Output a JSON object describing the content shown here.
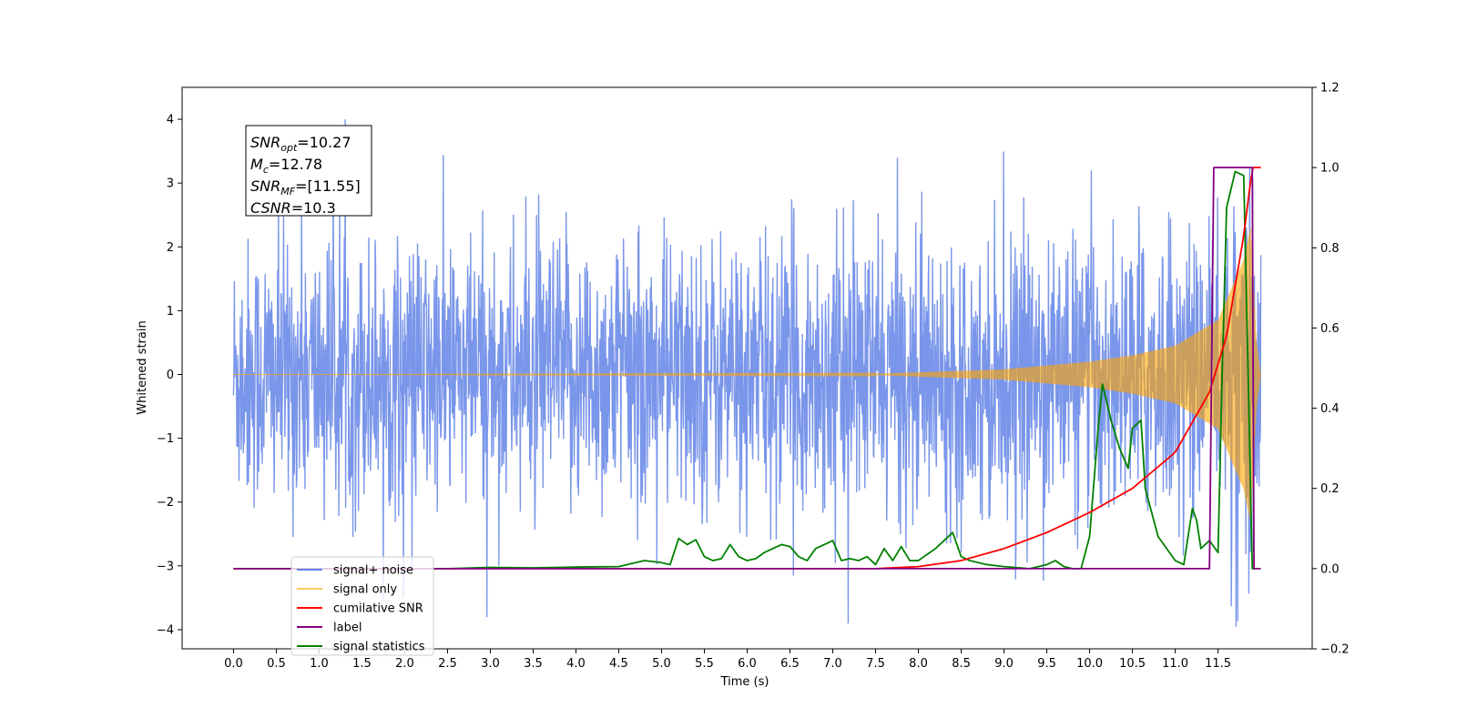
{
  "chart_data": {
    "type": "line",
    "xlabel": "Time (s)",
    "ylabel": "Whitened strain",
    "xlim": [
      -0.6,
      12.6
    ],
    "ylim_left": [
      -4.3,
      4.5
    ],
    "ylim_right": [
      -0.2,
      1.2
    ],
    "x_ticks": [
      "0.0",
      "0.5",
      "1.0",
      "1.5",
      "2.0",
      "2.5",
      "3.0",
      "3.5",
      "4.0",
      "4.5",
      "5.0",
      "5.5",
      "6.0",
      "6.5",
      "7.0",
      "7.5",
      "8.0",
      "8.5",
      "9.0",
      "9.5",
      "10.0",
      "10.5",
      "11.0",
      "11.5"
    ],
    "y_left_ticks": [
      "−4",
      "−3",
      "−2",
      "−1",
      "0",
      "1",
      "2",
      "3",
      "4"
    ],
    "y_right_ticks": [
      "−0.2",
      "0.0",
      "0.2",
      "0.4",
      "0.6",
      "0.8",
      "1.0",
      "1.2"
    ],
    "annotation": {
      "lines": [
        {
          "main": "SNR",
          "sub": "opt",
          "value": "=10.27"
        },
        {
          "main": "M",
          "sub": "c",
          "value": "=12.78"
        },
        {
          "main": "SNR",
          "sub": "MF",
          "value": "=[11.55]"
        },
        {
          "main": "CSNR",
          "sub": "",
          "value": "=10.3"
        }
      ]
    },
    "legend": {
      "location": "lower-left",
      "entries": [
        {
          "label": "signal+ noise",
          "color": "#4169e1"
        },
        {
          "label": "signal only",
          "color": "#ffa500"
        },
        {
          "label": "cumilative SNR",
          "color": "#ff0000"
        },
        {
          "label": "label",
          "color": "#800080"
        },
        {
          "label": "signal statistics",
          "color": "#008000"
        }
      ]
    },
    "series": [
      {
        "name": "signal+ noise",
        "axis": "left",
        "color": "#4169e1",
        "opacity": 0.7,
        "x_range": [
          0.0,
          12.0
        ],
        "noise_std": 1.0,
        "approx_range": [
          -3.9,
          4.1
        ]
      },
      {
        "name": "signal only",
        "axis": "left",
        "color": "#ffa500",
        "opacity": 0.6,
        "envelope": {
          "x": [
            0.0,
            7.5,
            9.0,
            10.0,
            10.5,
            11.0,
            11.5,
            11.8,
            11.88,
            11.95,
            12.0
          ],
          "amp": [
            0.0,
            0.01,
            0.08,
            0.2,
            0.3,
            0.45,
            0.85,
            1.8,
            2.3,
            0.5,
            0.0
          ]
        }
      },
      {
        "name": "cumilative SNR",
        "axis": "right",
        "color": "#ff0000",
        "x": [
          0.0,
          7.5,
          8.0,
          8.5,
          9.0,
          9.5,
          10.0,
          10.5,
          11.0,
          11.4,
          11.6,
          11.8,
          11.9,
          12.0
        ],
        "y": [
          0.0,
          0.0,
          0.005,
          0.02,
          0.05,
          0.09,
          0.14,
          0.2,
          0.29,
          0.44,
          0.58,
          0.83,
          1.0,
          1.0
        ]
      },
      {
        "name": "label",
        "axis": "right",
        "color": "#800080",
        "x": [
          0.0,
          11.4,
          11.45,
          11.9,
          11.92,
          12.0
        ],
        "y": [
          0.0,
          0.0,
          1.0,
          1.0,
          0.0,
          0.0
        ]
      },
      {
        "name": "signal statistics",
        "axis": "right",
        "color": "#008000",
        "x": [
          0.0,
          2.5,
          3.0,
          3.5,
          4.0,
          4.5,
          4.8,
          5.0,
          5.1,
          5.2,
          5.3,
          5.4,
          5.5,
          5.6,
          5.7,
          5.8,
          5.9,
          6.0,
          6.1,
          6.2,
          6.3,
          6.4,
          6.5,
          6.6,
          6.7,
          6.8,
          6.9,
          7.0,
          7.1,
          7.2,
          7.3,
          7.4,
          7.5,
          7.6,
          7.7,
          7.8,
          7.9,
          8.0,
          8.2,
          8.4,
          8.5,
          8.6,
          8.8,
          9.0,
          9.3,
          9.5,
          9.6,
          9.7,
          9.8,
          9.9,
          10.0,
          10.1,
          10.15,
          10.25,
          10.35,
          10.45,
          10.5,
          10.6,
          10.65,
          10.8,
          11.0,
          11.1,
          11.2,
          11.25,
          11.3,
          11.4,
          11.5,
          11.55,
          11.6,
          11.7,
          11.8,
          11.85,
          11.9,
          11.95
        ],
        "y": [
          0.0,
          0.0,
          0.003,
          0.002,
          0.004,
          0.005,
          0.02,
          0.015,
          0.01,
          0.075,
          0.06,
          0.072,
          0.03,
          0.02,
          0.025,
          0.06,
          0.03,
          0.02,
          0.025,
          0.04,
          0.05,
          0.06,
          0.055,
          0.03,
          0.02,
          0.05,
          0.06,
          0.07,
          0.02,
          0.025,
          0.02,
          0.03,
          0.01,
          0.05,
          0.02,
          0.055,
          0.02,
          0.02,
          0.05,
          0.09,
          0.03,
          0.02,
          0.01,
          0.005,
          0.0,
          0.01,
          0.02,
          0.005,
          0.0,
          0.0,
          0.08,
          0.35,
          0.46,
          0.37,
          0.3,
          0.25,
          0.35,
          0.37,
          0.2,
          0.08,
          0.02,
          0.01,
          0.15,
          0.12,
          0.05,
          0.07,
          0.04,
          0.5,
          0.9,
          0.99,
          0.98,
          0.5,
          0.0,
          0.0
        ]
      }
    ]
  }
}
